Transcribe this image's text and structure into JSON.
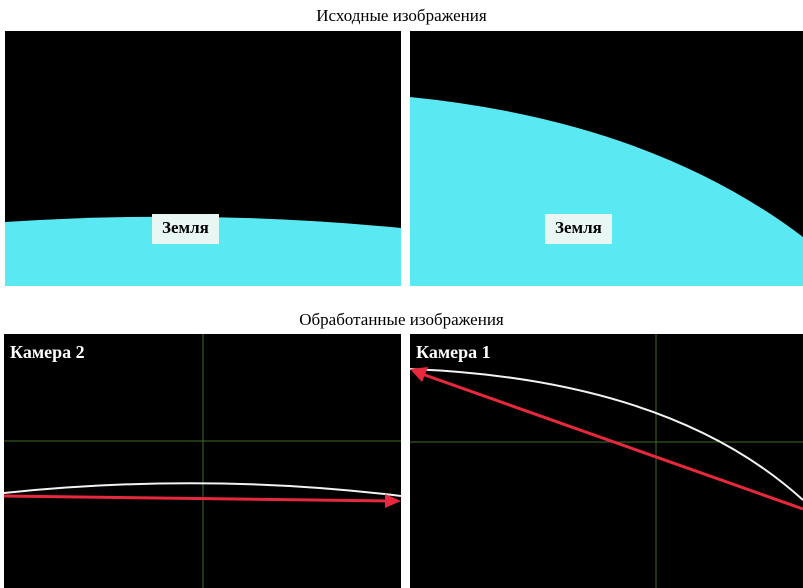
{
  "titles": {
    "source": "Исходные изображения",
    "processed": "Обработанные изображения"
  },
  "source_images": {
    "left": {
      "label": "Земля"
    },
    "right": {
      "label": "Земля"
    }
  },
  "processed_images": {
    "left": {
      "camera": "Камера 2"
    },
    "right": {
      "camera": "Камера 1"
    }
  },
  "colors": {
    "earth": "#5ae8f2",
    "background": "#000000",
    "horizon_curve": "#f2f2f2",
    "arrow": "#e8283c",
    "crosshair": "#3f6b26"
  }
}
